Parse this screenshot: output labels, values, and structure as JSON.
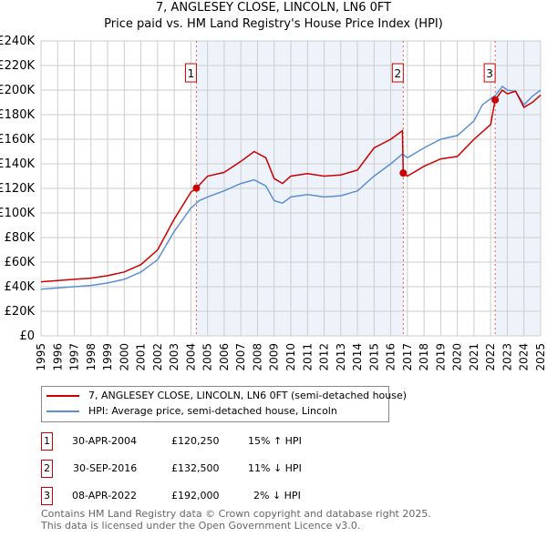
{
  "chart_data": {
    "type": "line",
    "title": "7, ANGLESEY CLOSE, LINCOLN, LN6 0FT",
    "subtitle": "Price paid vs. HM Land Registry's House Price Index (HPI)",
    "xlim": [
      1995,
      2025
    ],
    "ylim": [
      0,
      240000
    ],
    "y_ticks": [
      "£0",
      "£20K",
      "£40K",
      "£60K",
      "£80K",
      "£100K",
      "£120K",
      "£140K",
      "£160K",
      "£180K",
      "£200K",
      "£220K",
      "£240K"
    ],
    "x_ticks": [
      "1995",
      "1996",
      "1997",
      "1998",
      "1999",
      "2000",
      "2001",
      "2002",
      "2003",
      "2004",
      "2005",
      "2006",
      "2007",
      "2008",
      "2009",
      "2010",
      "2011",
      "2012",
      "2013",
      "2014",
      "2015",
      "2016",
      "2017",
      "2018",
      "2019",
      "2020",
      "2021",
      "2022",
      "2023",
      "2024",
      "2025"
    ],
    "grid": true,
    "series": [
      {
        "name": "7, ANGLESEY CLOSE, LINCOLN, LN6 0FT (semi-detached house)",
        "color": "#cc0000",
        "x": [
          1995,
          1996,
          1997,
          1998,
          1999,
          2000,
          2001,
          2002,
          2003,
          2004,
          2004.33,
          2005,
          2006,
          2007,
          2007.8,
          2008.5,
          2009,
          2009.5,
          2010,
          2011,
          2012,
          2013,
          2014,
          2015,
          2016,
          2016.7,
          2016.75,
          2017,
          2018,
          2019,
          2020,
          2021,
          2022,
          2022.27,
          2022.7,
          2023,
          2023.5,
          2024,
          2024.5,
          2025
        ],
        "y": [
          44000,
          45000,
          46000,
          47000,
          49000,
          52000,
          58000,
          70000,
          95000,
          117000,
          120250,
          130000,
          133000,
          142000,
          150000,
          145000,
          128000,
          124000,
          130000,
          132000,
          130000,
          131000,
          135000,
          153000,
          160000,
          167000,
          132500,
          130000,
          138000,
          144000,
          146000,
          160000,
          172000,
          192000,
          200000,
          197000,
          199000,
          186000,
          190000,
          196000
        ]
      },
      {
        "name": "HPI: Average price, semi-detached house, Lincoln",
        "color": "#5b8fd4",
        "x": [
          1995,
          1996,
          1997,
          1998,
          1999,
          2000,
          2001,
          2002,
          2003,
          2004,
          2004.5,
          2005,
          2006,
          2007,
          2007.8,
          2008.5,
          2009,
          2009.5,
          2010,
          2011,
          2012,
          2013,
          2014,
          2015,
          2016,
          2016.7,
          2017,
          2018,
          2019,
          2020,
          2021,
          2021.5,
          2022.3,
          2022.7,
          2023,
          2023.5,
          2024,
          2024.5,
          2025
        ],
        "y": [
          38000,
          39000,
          40000,
          41000,
          43000,
          46000,
          52000,
          62000,
          85000,
          104000,
          110000,
          113000,
          118000,
          124000,
          127000,
          122000,
          110000,
          108000,
          113000,
          115000,
          113000,
          114000,
          118000,
          130000,
          140000,
          148000,
          145000,
          153000,
          160000,
          163000,
          175000,
          188000,
          196000,
          203000,
          200000,
          199000,
          188000,
          195000,
          200000
        ]
      }
    ],
    "sales": [
      {
        "label": "1",
        "x": 2004.33,
        "y": 120250,
        "date": "30-APR-2004",
        "price": "£120,250",
        "hpi": "15% ↑ HPI"
      },
      {
        "label": "2",
        "x": 2016.75,
        "y": 132500,
        "date": "30-SEP-2016",
        "price": "£132,500",
        "hpi": "11% ↓ HPI"
      },
      {
        "label": "3",
        "x": 2022.27,
        "y": 192000,
        "date": "08-APR-2022",
        "price": "£192,000",
        "hpi": "2% ↓ HPI"
      }
    ],
    "legend_placement": "below"
  },
  "footer": [
    "Contains HM Land Registry data © Crown copyright and database right 2025.",
    "This data is licensed under the Open Government Licence v3.0."
  ]
}
